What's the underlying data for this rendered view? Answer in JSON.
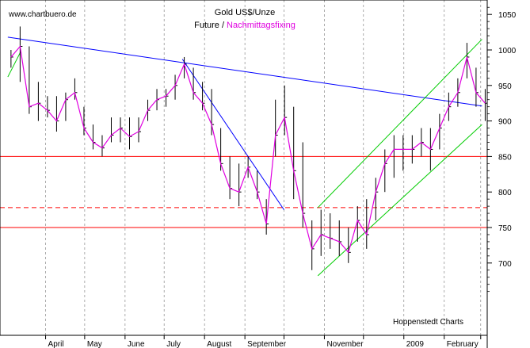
{
  "chart_data": {
    "type": "line",
    "watermark": "www.chartbuero.de",
    "title": "Gold US$/Unze",
    "subtitle_prefix": "Future /",
    "subtitle_highlight": "Nachmittagsfixing",
    "source": "Hoppenstedt Charts",
    "x_tick_labels": [
      "April",
      "May",
      "June",
      "July",
      "August",
      "September",
      "November",
      "2009",
      "February"
    ],
    "y_tick_labels": [
      "1050",
      "1000",
      "950",
      "900",
      "850",
      "800",
      "750",
      "700"
    ],
    "ylim": [
      650,
      1060
    ],
    "colors": {
      "price_bars": "#000000",
      "fixing_line": "#e000e0",
      "trend_line": "#0000ff",
      "channel": "#00cc00",
      "support": "#ff0000",
      "grid": "#888888"
    },
    "horizontal_levels": [
      {
        "value": 850,
        "style": "solid"
      },
      {
        "value": 778,
        "style": "dashed"
      },
      {
        "value": 750,
        "style": "solid"
      }
    ],
    "trend_lines": [
      {
        "from": {
          "x": "2008-03-03",
          "y": 1018
        },
        "to": {
          "x": "2009-03-02",
          "y": 921
        },
        "color": "blue"
      },
      {
        "from": {
          "x": "2008-07-15",
          "y": 987
        },
        "to": {
          "x": "2008-10-01",
          "y": 775
        },
        "color": "blue"
      },
      {
        "from": {
          "x": "2008-10-27",
          "y": 682
        },
        "to": {
          "x": "2009-03-02",
          "y": 895
        },
        "color": "green"
      },
      {
        "from": {
          "x": "2008-10-27",
          "y": 778
        },
        "to": {
          "x": "2009-03-02",
          "y": 1015
        },
        "color": "green"
      },
      {
        "from": {
          "x": "2008-03-03",
          "y": 962
        },
        "to": {
          "x": "2008-03-13",
          "y": 998
        },
        "color": "green"
      }
    ],
    "series": [
      {
        "x": [
          "2008-03-03",
          "2008-03-10",
          "2008-03-17",
          "2008-03-24",
          "2008-03-31",
          "2008-04-07",
          "2008-04-14",
          "2008-04-21",
          "2008-04-28",
          "2008-05-05",
          "2008-05-12",
          "2008-05-19",
          "2008-05-26",
          "2008-06-02",
          "2008-06-09",
          "2008-06-16",
          "2008-06-23",
          "2008-06-30",
          "2008-07-07",
          "2008-07-14",
          "2008-07-21",
          "2008-07-28",
          "2008-08-04",
          "2008-08-11",
          "2008-08-18",
          "2008-08-25",
          "2008-09-01",
          "2008-09-08",
          "2008-09-15",
          "2008-09-22",
          "2008-09-29",
          "2008-10-06",
          "2008-10-13",
          "2008-10-20",
          "2008-10-27",
          "2008-11-03",
          "2008-11-10",
          "2008-11-17",
          "2008-11-24",
          "2008-12-01",
          "2008-12-08",
          "2008-12-15",
          "2008-12-22",
          "2008-12-29",
          "2009-01-05",
          "2009-01-12",
          "2009-01-19",
          "2009-01-26",
          "2009-02-02",
          "2009-02-09",
          "2009-02-16",
          "2009-02-23",
          "2009-03-02"
        ],
        "high": [
          1000,
          1033,
          1005,
          955,
          935,
          935,
          940,
          960,
          920,
          895,
          880,
          905,
          905,
          905,
          905,
          930,
          945,
          945,
          965,
          990,
          975,
          955,
          945,
          890,
          850,
          840,
          850,
          830,
          790,
          930,
          950,
          920,
          870,
          760,
          775,
          770,
          760,
          750,
          780,
          790,
          820,
          860,
          880,
          880,
          880,
          890,
          890,
          910,
          940,
          960,
          1010,
          975,
          945
        ],
        "low": [
          975,
          955,
          910,
          900,
          905,
          885,
          900,
          930,
          880,
          860,
          850,
          870,
          870,
          860,
          870,
          900,
          915,
          920,
          930,
          960,
          930,
          915,
          880,
          830,
          790,
          780,
          820,
          790,
          740,
          850,
          880,
          790,
          750,
          690,
          710,
          720,
          710,
          700,
          730,
          720,
          760,
          800,
          820,
          830,
          840,
          850,
          830,
          860,
          900,
          920,
          960,
          920,
          900
        ],
        "close": [
          990,
          1005,
          920,
          925,
          915,
          900,
          930,
          940,
          890,
          870,
          862,
          880,
          890,
          878,
          885,
          915,
          930,
          935,
          950,
          980,
          940,
          925,
          895,
          840,
          805,
          800,
          835,
          800,
          755,
          880,
          905,
          830,
          770,
          720,
          740,
          735,
          730,
          715,
          760,
          740,
          800,
          840,
          860,
          860,
          860,
          870,
          860,
          890,
          920,
          940,
          990,
          940,
          925
        ]
      }
    ]
  }
}
